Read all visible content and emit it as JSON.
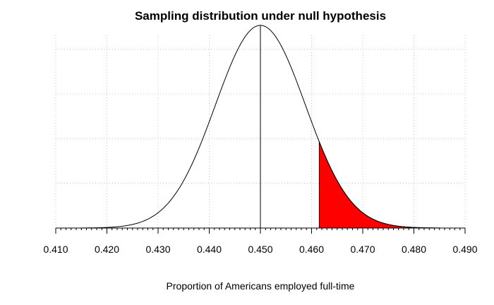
{
  "chart_data": {
    "type": "area",
    "title": "Sampling distribution under null hypothesis",
    "xlabel": "Proportion of Americans employed full-time",
    "ylabel": "",
    "xlim": [
      0.41,
      0.49
    ],
    "x_ticks": [
      0.41,
      0.42,
      0.43,
      0.44,
      0.45,
      0.46,
      0.47,
      0.48,
      0.49
    ],
    "x_tick_labels": [
      "0.410",
      "0.420",
      "0.430",
      "0.440",
      "0.450",
      "0.460",
      "0.470",
      "0.480",
      "0.490"
    ],
    "y_gridlines": [
      10,
      20,
      30,
      40
    ],
    "ylim": [
      0,
      45
    ],
    "grid": true,
    "grid_style": "dotted",
    "curve": {
      "distribution": "normal",
      "mean": 0.45,
      "sd": 0.0088,
      "x_range": [
        0.415,
        0.485
      ]
    },
    "mean_line_x": 0.45,
    "shaded_region": {
      "from": 0.4615,
      "to": 0.485,
      "color": "#ff0000"
    },
    "curve_color": "#000000"
  }
}
